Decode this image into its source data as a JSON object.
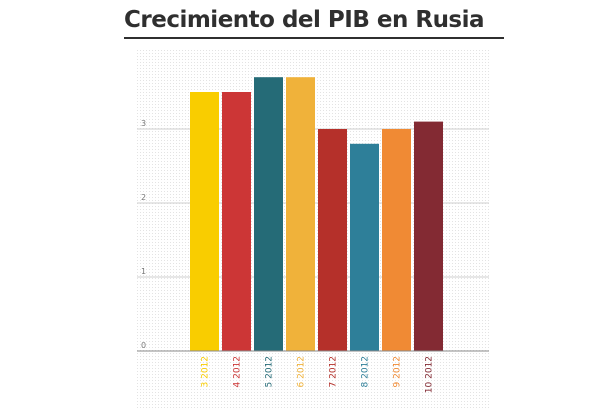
{
  "header": {
    "title": "Crecimiento del PIB en Rusia"
  },
  "chart_data": {
    "type": "bar",
    "title": "Crecimiento del PIB en Rusia",
    "xlabel": "",
    "ylabel": "",
    "categories": [
      "3 2012",
      "4 2012",
      "5 2012",
      "6 2012",
      "7 2012",
      "8 2012",
      "9 2012",
      "10 2012"
    ],
    "values": [
      3.5,
      3.5,
      3.7,
      3.7,
      3.0,
      2.8,
      3.0,
      3.1
    ],
    "colors": [
      "#f9cd00",
      "#cc3636",
      "#256b77",
      "#f0b23a",
      "#b5302a",
      "#2e7f99",
      "#f08a34",
      "#832a33"
    ],
    "ylim": [
      0,
      4
    ],
    "yticks": [
      0,
      1,
      2,
      3
    ],
    "grid": true,
    "legend": "none"
  }
}
